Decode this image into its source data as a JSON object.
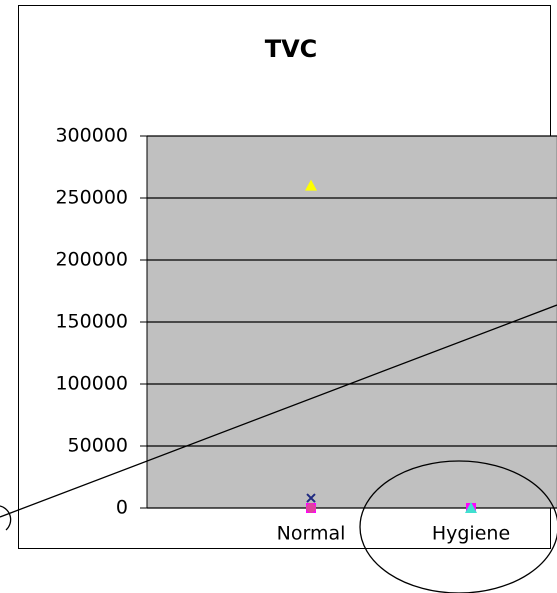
{
  "chart_data": {
    "type": "scatter",
    "title": "TVC",
    "categories": [
      "Normal",
      "Hygiene"
    ],
    "series": [
      {
        "color": "#ffff00",
        "marker": "triangle",
        "values": [
          260000,
          null
        ]
      },
      {
        "color": "#1f2a80",
        "marker": "x",
        "values": [
          8000,
          null
        ]
      },
      {
        "color": "#ff00ff",
        "marker": "square",
        "values": [
          0,
          0
        ]
      },
      {
        "color": "#e040a0",
        "marker": "circle",
        "values": [
          0,
          null
        ]
      },
      {
        "color": "#40e0d0",
        "marker": "triangle",
        "values": [
          null,
          0
        ]
      }
    ],
    "ylim": [
      0,
      300000
    ],
    "yticks": [
      0,
      50000,
      100000,
      150000,
      200000,
      250000,
      300000
    ],
    "grid": true
  }
}
